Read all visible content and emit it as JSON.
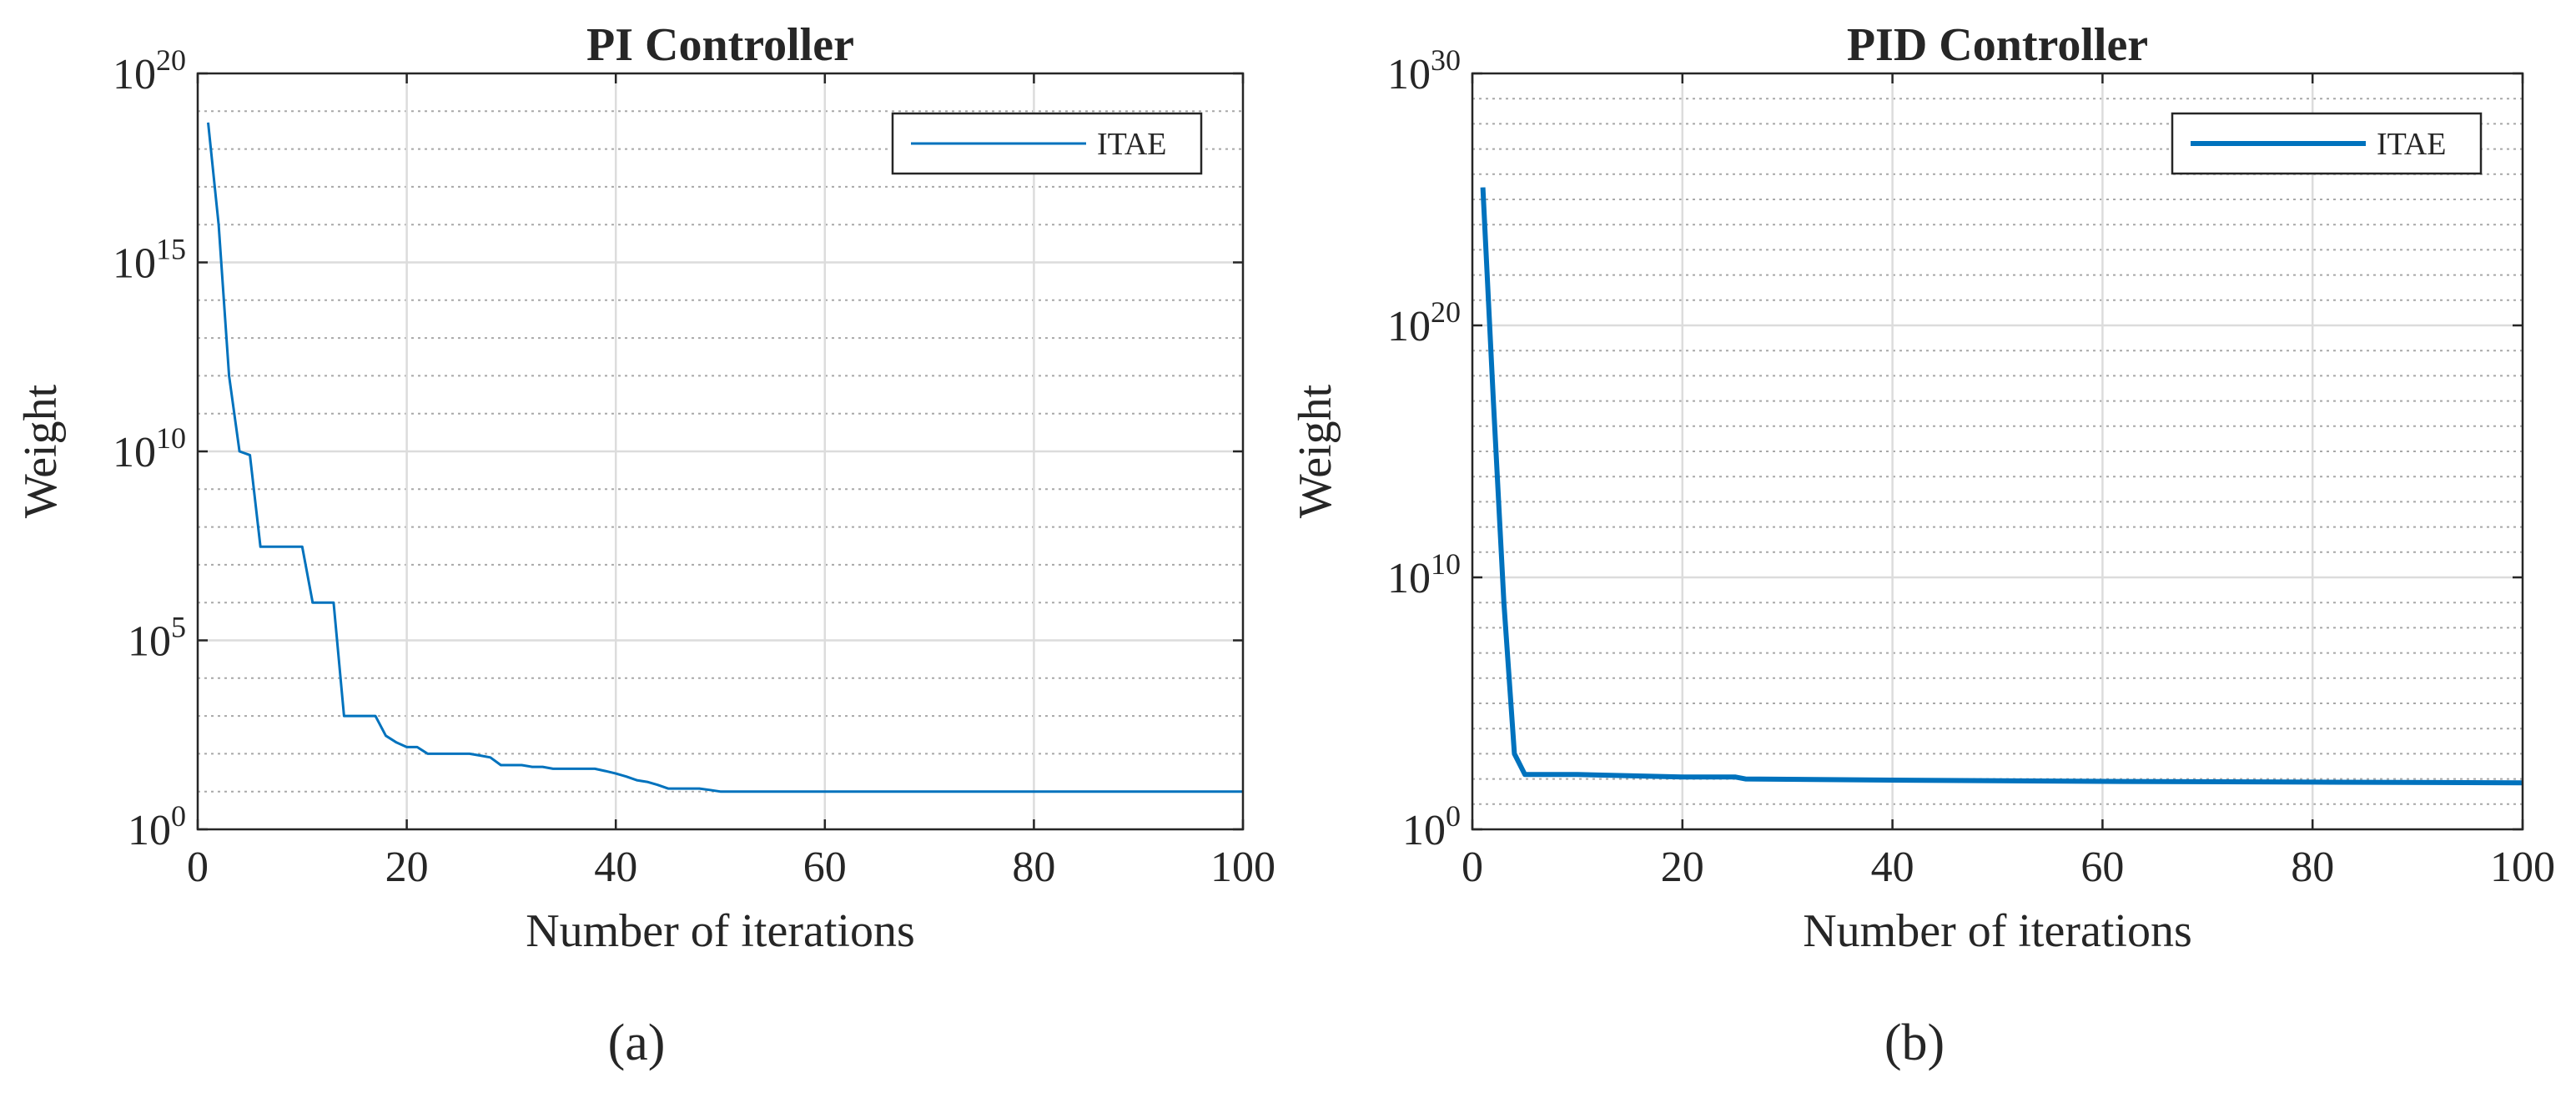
{
  "figure": {
    "panel_labels": [
      "(a)",
      "(b)"
    ]
  },
  "chart_data": [
    {
      "type": "line",
      "title": "PI Controller",
      "xlabel": "Number of iterations",
      "ylabel": "Weight",
      "xlim": [
        0,
        100
      ],
      "ylim_log10": [
        0,
        20
      ],
      "yscale": "log",
      "xticks": [
        "0",
        "20",
        "40",
        "60",
        "80",
        "100"
      ],
      "yticks": [
        {
          "base": "10",
          "exp": "0"
        },
        {
          "base": "10",
          "exp": "5"
        },
        {
          "base": "10",
          "exp": "10"
        },
        {
          "base": "10",
          "exp": "15"
        },
        {
          "base": "10",
          "exp": "20"
        }
      ],
      "grid": true,
      "legend_position": "top-right",
      "line_color": "#0072bd",
      "series": [
        {
          "name": "ITAE",
          "x": [
            1,
            2,
            3,
            4,
            5,
            6,
            7,
            8,
            9,
            10,
            11,
            12,
            13,
            14,
            15,
            16,
            17,
            18,
            19,
            20,
            21,
            22,
            23,
            24,
            25,
            26,
            27,
            28,
            29,
            30,
            31,
            32,
            33,
            34,
            35,
            36,
            37,
            38,
            39,
            40,
            41,
            42,
            43,
            44,
            45,
            46,
            47,
            48,
            49,
            50,
            60,
            70,
            80,
            90,
            100
          ],
          "y": [
            5e+18,
            1e+16,
            1000000000000.0,
            10000000000.0,
            8000000000.0,
            30000000.0,
            30000000.0,
            30000000.0,
            30000000.0,
            30000000.0,
            1000000.0,
            1000000.0,
            1000000.0,
            1000.0,
            1000.0,
            1000.0,
            1000.0,
            300,
            200,
            150,
            150,
            100,
            100,
            100,
            100,
            100,
            90,
            80,
            50,
            50,
            50,
            45,
            45,
            40,
            40,
            40,
            40,
            40,
            35,
            30,
            25,
            20,
            18,
            15,
            12,
            12,
            12,
            12,
            11,
            10,
            10,
            10,
            10,
            10,
            10
          ]
        }
      ]
    },
    {
      "type": "line",
      "title": "PID Controller",
      "xlabel": "Number of iterations",
      "ylabel": "Weight",
      "xlim": [
        0,
        100
      ],
      "ylim_log10": [
        0,
        30
      ],
      "yscale": "log",
      "xticks": [
        "0",
        "20",
        "40",
        "60",
        "80",
        "100"
      ],
      "yticks": [
        {
          "base": "10",
          "exp": "0"
        },
        {
          "base": "10",
          "exp": "10"
        },
        {
          "base": "10",
          "exp": "20"
        },
        {
          "base": "10",
          "exp": "30"
        }
      ],
      "grid": true,
      "legend_position": "top-right",
      "line_color": "#0072bd",
      "series": [
        {
          "name": "ITAE",
          "x": [
            1,
            2,
            3,
            4,
            5,
            10,
            20,
            25,
            26,
            40,
            60,
            80,
            100
          ],
          "y": [
            3e+25,
            1e+17,
            1000000000.0,
            1000.0,
            150,
            150,
            120,
            120,
            100,
            90,
            80,
            75,
            70
          ]
        }
      ]
    }
  ]
}
